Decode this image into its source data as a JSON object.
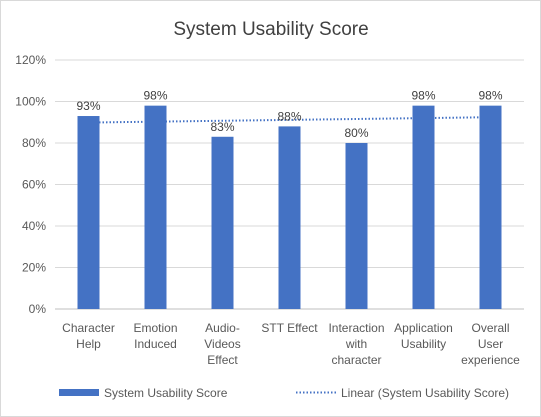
{
  "chart_data": {
    "type": "bar",
    "title": "System Usability Score",
    "xlabel": "",
    "ylabel": "",
    "ylim": [
      0,
      120
    ],
    "yticks": [
      0,
      20,
      40,
      60,
      80,
      100,
      120
    ],
    "ytick_labels": [
      "0%",
      "20%",
      "40%",
      "60%",
      "80%",
      "100%",
      "120%"
    ],
    "categories": [
      [
        "Character",
        "Help"
      ],
      [
        "Emotion",
        "Induced"
      ],
      [
        "Audio-",
        "Videos",
        "Effect"
      ],
      [
        "STT Effect"
      ],
      [
        "Interaction",
        "with",
        "character"
      ],
      [
        "Application",
        "Usability"
      ],
      [
        "Overall",
        "User",
        "experience"
      ]
    ],
    "series": [
      {
        "name": "System Usability Score",
        "values": [
          93,
          98,
          83,
          88,
          80,
          98,
          98
        ],
        "data_labels": [
          "93%",
          "98%",
          "83%",
          "88%",
          "80%",
          "98%",
          "98%"
        ],
        "color": "#4472c4"
      }
    ],
    "trendline": {
      "name": "Linear (System Usability Score)",
      "type": "linear",
      "color": "#4472c4"
    },
    "grid": true,
    "legend": "bottom"
  }
}
